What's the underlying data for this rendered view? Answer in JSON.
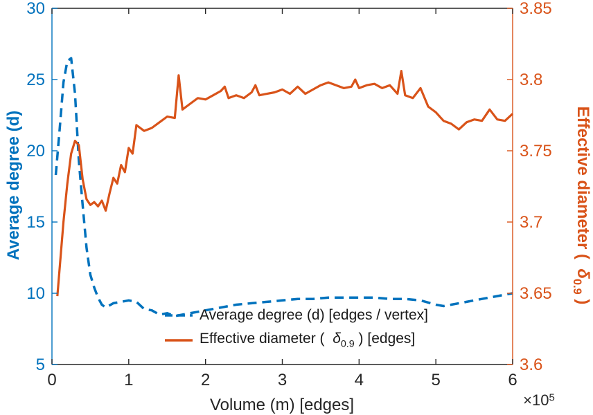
{
  "chart_data": {
    "type": "line",
    "title": "",
    "xlabel": "Volume (m) [edges]",
    "x_exponent_base": "×10",
    "x_exponent": "5",
    "ylabel_left": "Average degree (d)",
    "ylabel_right": {
      "prefix": "Effective diameter (  ",
      "symbol": "δ",
      "subscript": "0.9",
      "suffix": " )"
    },
    "xlim": [
      0,
      6
    ],
    "ylim_left": [
      5,
      30
    ],
    "ylim_right": [
      3.6,
      3.85
    ],
    "xticks": [
      0,
      1,
      2,
      3,
      4,
      5,
      6
    ],
    "yticks_left": [
      5,
      10,
      15,
      20,
      25,
      30
    ],
    "yticks_right": [
      3.6,
      3.65,
      3.7,
      3.75,
      3.8,
      3.85
    ],
    "grid": false,
    "legend_position": "inside-bottom-center",
    "colors": {
      "left_axis": "#0072BD",
      "right_axis": "#D95319",
      "axis_dark": "#262626"
    },
    "legend": [
      {
        "label": "Average degree (d) [edges / vertex]",
        "style": "dashed",
        "color": "#0072BD"
      },
      {
        "prefix": "Effective diameter (  ",
        "symbol": "δ",
        "subscript": "0.9",
        "suffix": " ) [edges]",
        "style": "solid",
        "color": "#D95319"
      }
    ],
    "series": [
      {
        "name": "Average degree (d) [edges / vertex]",
        "axis": "left",
        "style": "dashed",
        "color": "#0072BD",
        "x": [
          0.05,
          0.1,
          0.15,
          0.2,
          0.25,
          0.3,
          0.35,
          0.4,
          0.45,
          0.5,
          0.55,
          0.6,
          0.65,
          0.7,
          0.8,
          0.9,
          1.0,
          1.1,
          1.2,
          1.3,
          1.4,
          1.5,
          1.6,
          1.7,
          1.8,
          1.9,
          2.0,
          2.2,
          2.4,
          2.6,
          2.8,
          3.0,
          3.2,
          3.4,
          3.6,
          3.8,
          4.0,
          4.2,
          4.4,
          4.6,
          4.8,
          5.0,
          5.1,
          5.2,
          5.4,
          5.6,
          5.8,
          6.0
        ],
        "y": [
          18.3,
          21.5,
          24.8,
          26.3,
          26.5,
          24.0,
          19.3,
          16.2,
          13.2,
          11.3,
          10.4,
          9.7,
          9.2,
          9.0,
          9.3,
          9.4,
          9.5,
          9.4,
          8.9,
          8.8,
          8.5,
          8.6,
          8.4,
          8.5,
          8.6,
          8.7,
          8.8,
          9.0,
          9.2,
          9.3,
          9.4,
          9.5,
          9.6,
          9.6,
          9.7,
          9.7,
          9.7,
          9.7,
          9.6,
          9.6,
          9.5,
          9.2,
          9.1,
          9.2,
          9.4,
          9.6,
          9.8,
          10.0
        ]
      },
      {
        "name": "Effective diameter ( δ0.9 ) [edges]",
        "axis": "right",
        "style": "solid",
        "color": "#D95319",
        "x": [
          0.07,
          0.15,
          0.2,
          0.25,
          0.3,
          0.35,
          0.4,
          0.45,
          0.5,
          0.55,
          0.6,
          0.65,
          0.7,
          0.75,
          0.8,
          0.85,
          0.9,
          0.95,
          1.0,
          1.05,
          1.1,
          1.2,
          1.3,
          1.4,
          1.5,
          1.6,
          1.65,
          1.7,
          1.8,
          1.9,
          2.0,
          2.1,
          2.2,
          2.25,
          2.3,
          2.4,
          2.5,
          2.6,
          2.65,
          2.7,
          2.8,
          2.9,
          3.0,
          3.1,
          3.2,
          3.3,
          3.4,
          3.5,
          3.6,
          3.7,
          3.8,
          3.9,
          3.95,
          4.0,
          4.1,
          4.2,
          4.3,
          4.4,
          4.5,
          4.55,
          4.6,
          4.7,
          4.8,
          4.9,
          5.0,
          5.1,
          5.2,
          5.3,
          5.4,
          5.5,
          5.6,
          5.7,
          5.8,
          5.9,
          6.0
        ],
        "y": [
          3.648,
          3.7,
          3.727,
          3.748,
          3.757,
          3.754,
          3.73,
          3.716,
          3.712,
          3.714,
          3.711,
          3.715,
          3.708,
          3.72,
          3.731,
          3.727,
          3.74,
          3.735,
          3.752,
          3.748,
          3.768,
          3.764,
          3.766,
          3.77,
          3.774,
          3.773,
          3.803,
          3.779,
          3.783,
          3.787,
          3.786,
          3.789,
          3.792,
          3.795,
          3.787,
          3.789,
          3.787,
          3.791,
          3.796,
          3.789,
          3.79,
          3.791,
          3.793,
          3.79,
          3.795,
          3.79,
          3.793,
          3.796,
          3.798,
          3.796,
          3.794,
          3.795,
          3.8,
          3.794,
          3.796,
          3.797,
          3.794,
          3.796,
          3.79,
          3.806,
          3.789,
          3.787,
          3.794,
          3.781,
          3.777,
          3.771,
          3.769,
          3.765,
          3.77,
          3.772,
          3.771,
          3.779,
          3.772,
          3.771,
          3.776
        ]
      }
    ]
  }
}
